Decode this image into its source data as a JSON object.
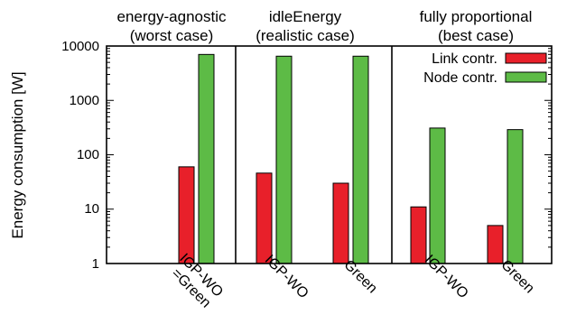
{
  "chart_data": {
    "type": "bar",
    "ylabel": "Energy consumption [W]",
    "yscale": "log",
    "ylim": [
      1,
      10000
    ],
    "yticks": [
      "1",
      "10",
      "100",
      "1000",
      "10000"
    ],
    "grid": false,
    "legend_position": "top-right",
    "categories": [
      "IGP-WO =Green",
      "IGP-WO",
      "Green",
      "IGP-WO",
      "Green"
    ],
    "category_lines": [
      [
        "IGP-WO",
        "=Green"
      ],
      [
        "IGP-WO"
      ],
      [
        "Green"
      ],
      [
        "IGP-WO"
      ],
      [
        "Green"
      ]
    ],
    "groups": [
      {
        "title": [
          "energy-agnostic",
          "(worst case)"
        ],
        "categories": [
          0
        ]
      },
      {
        "title": [
          "idleEnergy",
          "(realistic case)"
        ],
        "categories": [
          1,
          2
        ]
      },
      {
        "title": [
          "fully proportional",
          "(best case)"
        ],
        "categories": [
          3,
          4
        ]
      }
    ],
    "series": [
      {
        "name": "Link contr.",
        "color": "#e8202a",
        "values": [
          60,
          46,
          30,
          11,
          5
        ]
      },
      {
        "name": "Node contr.",
        "color": "#5dbb46",
        "values": [
          7000,
          6500,
          6500,
          310,
          290
        ]
      }
    ]
  }
}
